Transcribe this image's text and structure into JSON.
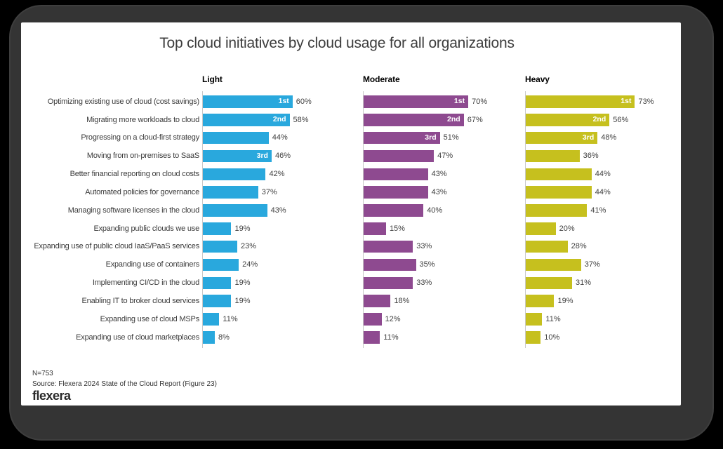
{
  "title": "Top cloud initiatives by cloud usage for all organizations",
  "chart_data": {
    "type": "bar",
    "orientation": "horizontal",
    "value_suffix": "%",
    "xlim": [
      0,
      100
    ],
    "categories": [
      "Optimizing existing use of cloud (cost savings)",
      "Migrating more workloads to cloud",
      "Progressing on a cloud-first strategy",
      "Moving from on-premises to SaaS",
      "Better financial reporting on cloud costs",
      "Automated policies for governance",
      "Managing software licenses in the cloud",
      "Expanding public clouds we use",
      "Expanding use of public cloud IaaS/PaaS services",
      "Expanding use of containers",
      "Implementing CI/CD in the cloud",
      "Enabling IT to broker cloud services",
      "Expanding use of cloud MSPs",
      "Expanding use of cloud marketplaces"
    ],
    "series": [
      {
        "name": "Light",
        "color": "#29A8DD",
        "values": [
          60,
          58,
          44,
          46,
          42,
          37,
          43,
          19,
          23,
          24,
          19,
          19,
          11,
          8
        ],
        "ranks": {
          "0": "1st",
          "1": "2nd",
          "3": "3rd"
        }
      },
      {
        "name": "Moderate",
        "color": "#8E4A90",
        "values": [
          70,
          67,
          51,
          47,
          43,
          43,
          40,
          15,
          33,
          35,
          33,
          18,
          12,
          11
        ],
        "ranks": {
          "0": "1st",
          "1": "2nd",
          "2": "3rd"
        }
      },
      {
        "name": "Heavy",
        "color": "#C6C01E",
        "values": [
          73,
          56,
          48,
          36,
          44,
          44,
          41,
          20,
          28,
          37,
          31,
          19,
          11,
          10
        ],
        "ranks": {
          "0": "1st",
          "1": "2nd",
          "2": "3rd"
        }
      }
    ]
  },
  "footer": {
    "n": "N=753",
    "source": "Source: Flexera 2024 State of the Cloud Report (Figure 23)",
    "logo": "flexera"
  }
}
